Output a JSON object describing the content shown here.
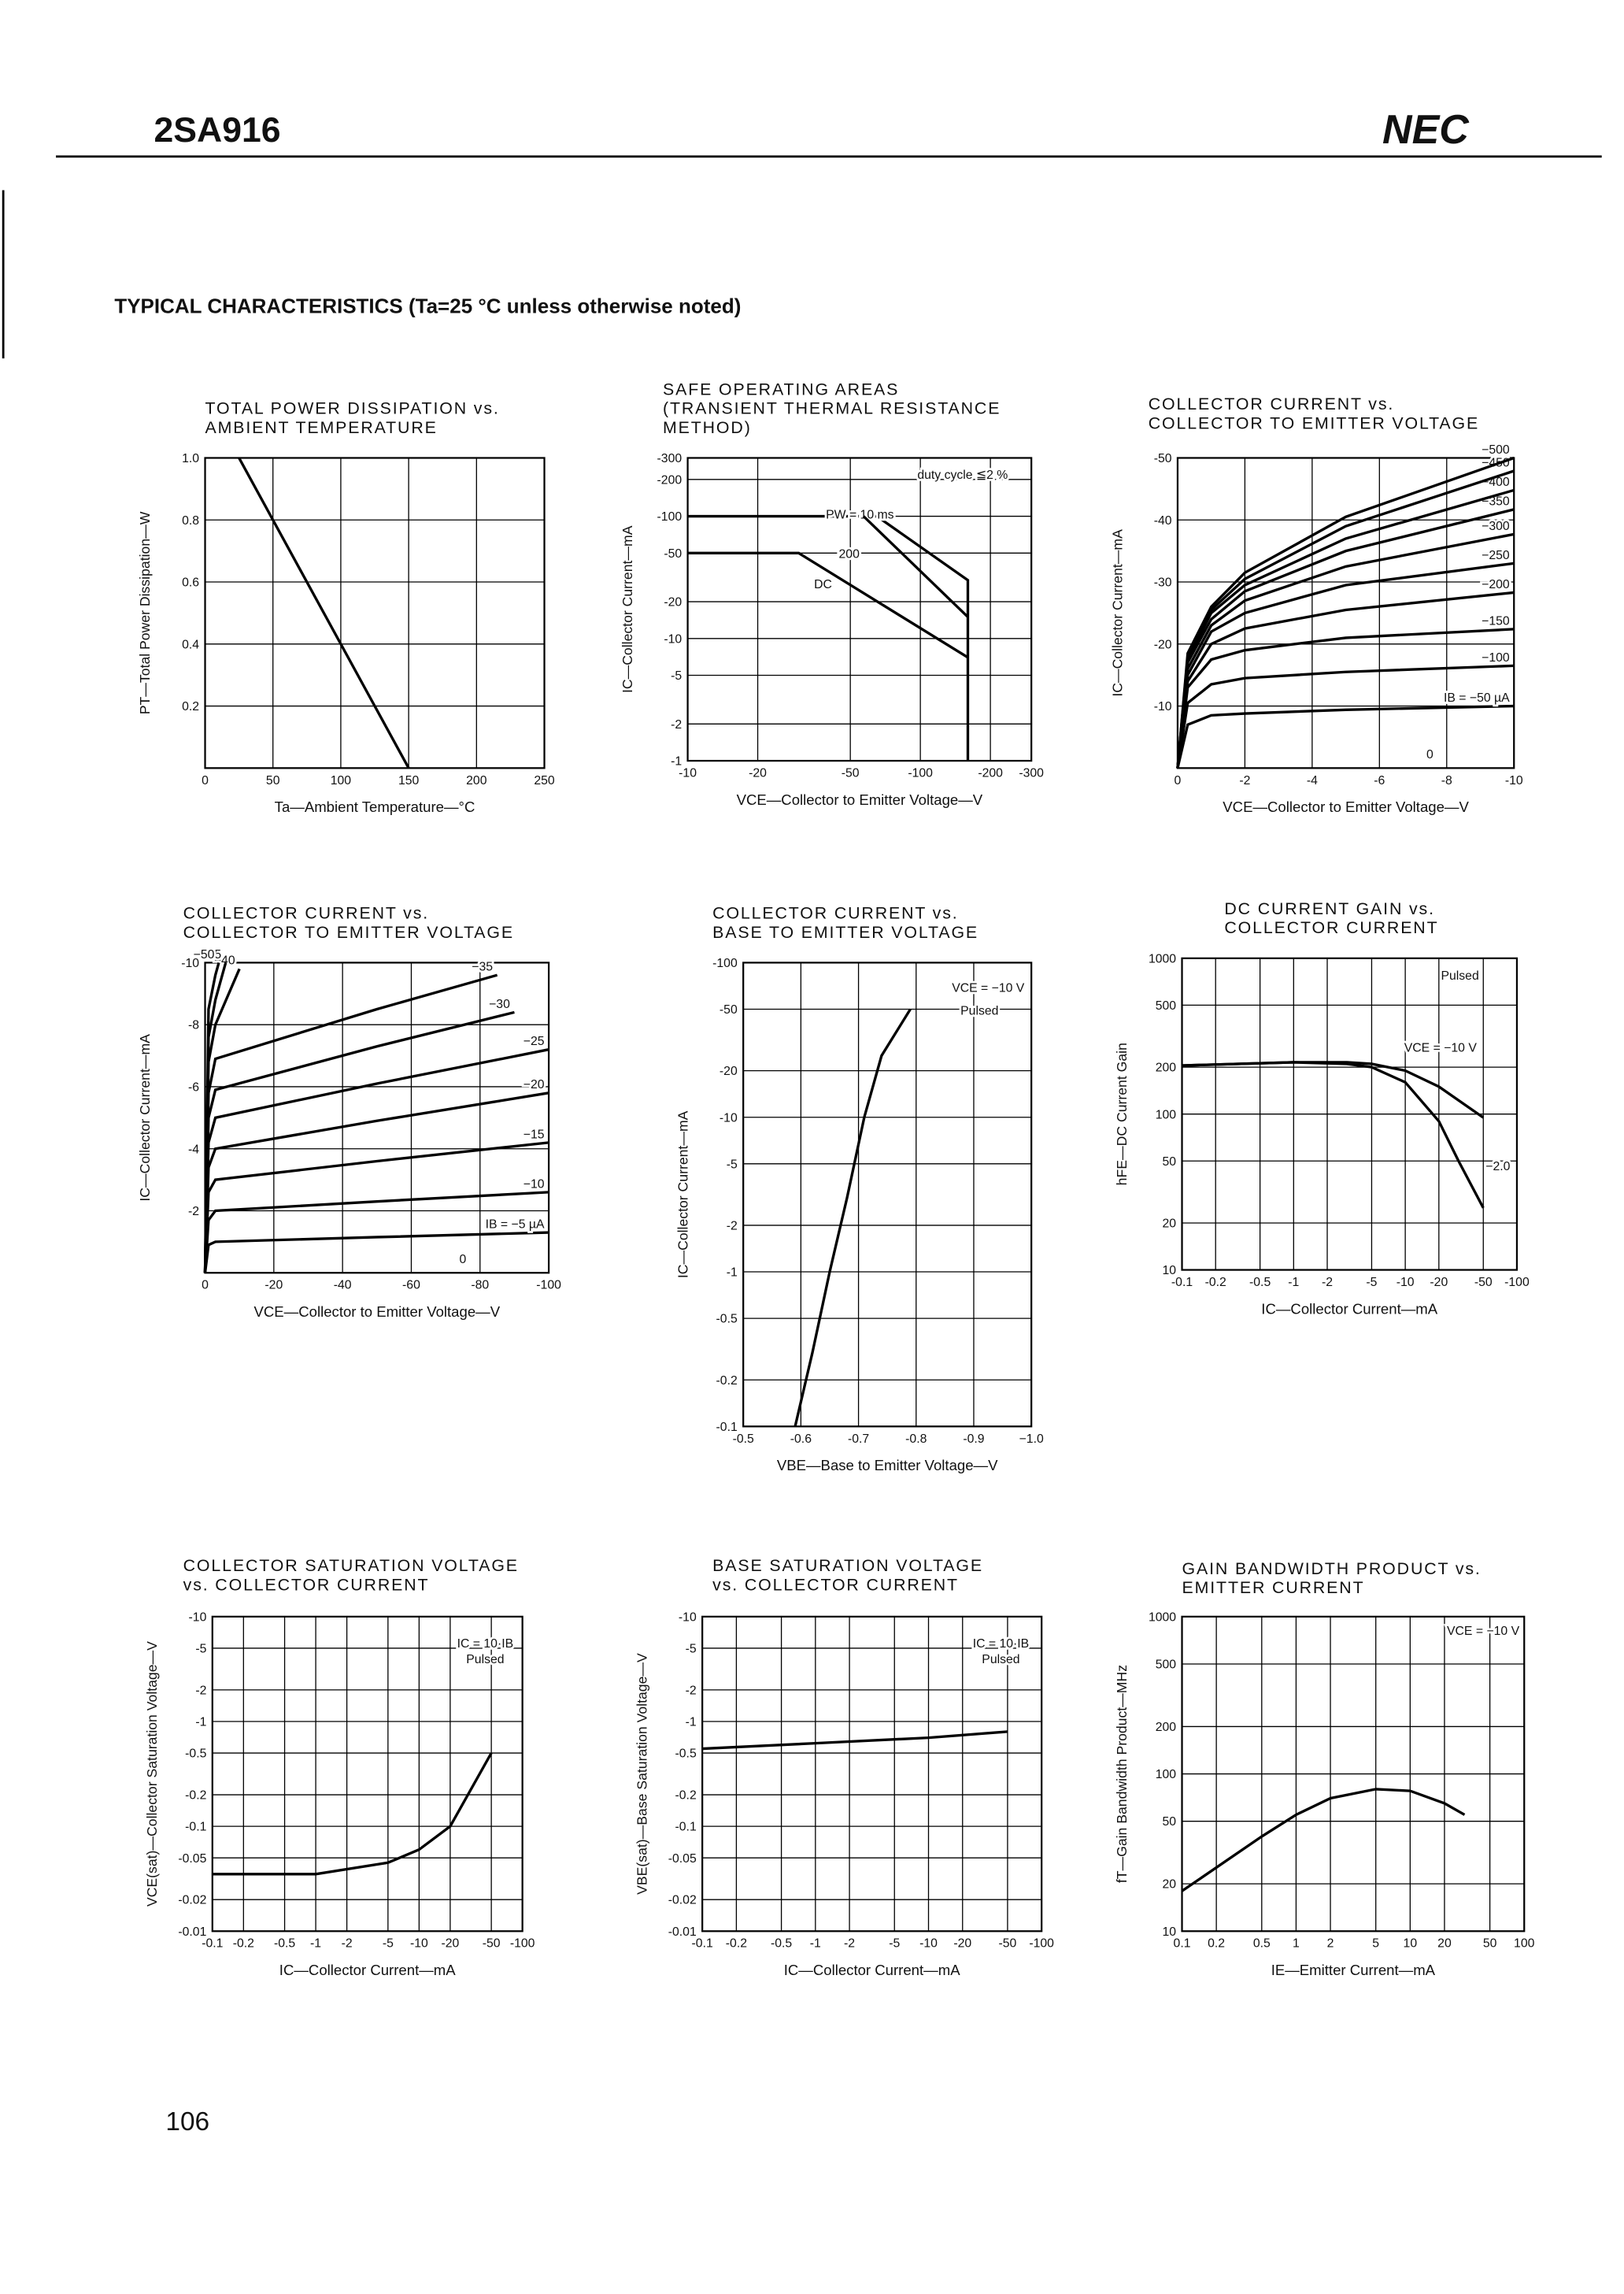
{
  "header": {
    "part": "2SA916",
    "brand": "NEC"
  },
  "section_title": "TYPICAL CHARACTERISTICS (Ta=25 °C unless otherwise noted)",
  "page_number": "106",
  "chart_data": [
    {
      "type": "line",
      "title": [
        "TOTAL POWER DISSIPATION vs.",
        "AMBIENT TEMPERATURE"
      ],
      "x_label": "Ta—Ambient Temperature—°C",
      "y_label": "PT—Total Power Dissipation—W",
      "xlim": [
        0,
        250
      ],
      "ylim": [
        0,
        1
      ],
      "xticks": [
        0,
        50,
        100,
        150,
        200,
        250
      ],
      "yticks": [
        0.2,
        0.4,
        0.6,
        0.8,
        {
          "value": 1,
          "label": "1.0"
        }
      ],
      "xlog": false,
      "ylog": false,
      "grid": true,
      "series": [
        {
          "color": "#000000",
          "x": [
            25,
            150
          ],
          "values": [
            1,
            0
          ]
        }
      ],
      "annotations": []
    },
    {
      "type": "line",
      "title": [
        "SAFE OPERATING AREAS",
        "(TRANSIENT THERMAL RESISTANCE",
        "METHOD)"
      ],
      "x_label": "VCE—Collector to Emitter Voltage—V",
      "y_label": "IC—Collector Current—mA",
      "xlim": [
        -10,
        -300
      ],
      "ylim": [
        -1,
        -300
      ],
      "xticks": [
        -10,
        -20,
        -50,
        -100,
        -200,
        -300
      ],
      "yticks": [
        -1,
        -2,
        -5,
        -10,
        -20,
        -50,
        -100,
        -200,
        -300
      ],
      "xlog": true,
      "ylog": true,
      "grid": true,
      "series": [
        {
          "name": "PW = 10 ms",
          "color": "#000000",
          "x": [
            -10,
            -65,
            -160,
            -160
          ],
          "values": [
            -100,
            -100,
            -30,
            -1
          ]
        },
        {
          "name": "200",
          "color": "#000000",
          "x": [
            -57,
            -160
          ],
          "values": [
            -100,
            -15
          ]
        },
        {
          "name": "DC",
          "color": "#000000",
          "x": [
            -10,
            -30,
            -160
          ],
          "values": [
            -50,
            -50,
            -7
          ]
        }
      ],
      "annotations": [
        "duty cycle ≦2 %"
      ]
    },
    {
      "type": "line",
      "title": [
        "COLLECTOR CURRENT vs.",
        "COLLECTOR TO EMITTER VOLTAGE"
      ],
      "x_label": "VCE—Collector to Emitter Voltage—V",
      "y_label": "IC—Collector Current—mA",
      "xlim": [
        0,
        -10
      ],
      "ylim": [
        0,
        -50
      ],
      "xticks": [
        0,
        -2,
        -4,
        -6,
        -8,
        -10
      ],
      "yticks": [
        -10,
        -20,
        -30,
        -40,
        -50
      ],
      "xlog": false,
      "ylog": false,
      "grid": true,
      "series": [
        {
          "name": "IB = −50 µA",
          "color": "#000000",
          "x": [
            0,
            -0.3,
            -1,
            -2,
            -5,
            -10
          ],
          "values": [
            0,
            -7,
            -8.5,
            -8.8,
            -9.4,
            -10
          ]
        },
        {
          "name": "−100",
          "color": "#000000",
          "x": [
            0,
            -0.3,
            -1,
            -2,
            -5,
            -10
          ],
          "values": [
            0,
            -10.5,
            -13.5,
            -14.5,
            -15.5,
            -16.5
          ]
        },
        {
          "name": "−150",
          "color": "#000000",
          "x": [
            0,
            -0.3,
            -1,
            -2,
            -5,
            -10
          ],
          "values": [
            0,
            -13,
            -17.5,
            -19,
            -21,
            -22.4
          ]
        },
        {
          "name": "−200",
          "color": "#000000",
          "x": [
            0,
            -0.3,
            -1,
            -2,
            -5,
            -10
          ],
          "values": [
            0,
            -14,
            -20,
            -22.5,
            -25.5,
            -28.3
          ]
        },
        {
          "name": "−250",
          "color": "#000000",
          "x": [
            0,
            -0.3,
            -1,
            -2,
            -5,
            -10
          ],
          "values": [
            0,
            -15,
            -22,
            -25,
            -29.5,
            -33
          ]
        },
        {
          "name": "−300",
          "color": "#000000",
          "x": [
            0,
            -0.3,
            -1,
            -2,
            -5,
            -10
          ],
          "values": [
            0,
            -16,
            -23,
            -27,
            -32.5,
            -37.7
          ]
        },
        {
          "name": "−350",
          "color": "#000000",
          "x": [
            0,
            -0.3,
            -1,
            -2,
            -5,
            -10
          ],
          "values": [
            0,
            -17,
            -24,
            -28.5,
            -35,
            -41.7
          ]
        },
        {
          "name": "−400",
          "color": "#000000",
          "x": [
            0,
            -0.3,
            -1,
            -2,
            -5,
            -10
          ],
          "values": [
            0,
            -17.5,
            -25,
            -29.5,
            -37,
            -44.8
          ]
        },
        {
          "name": "−450",
          "color": "#000000",
          "x": [
            0,
            -0.3,
            -1,
            -2,
            -5,
            -10
          ],
          "values": [
            0,
            -18,
            -25.5,
            -30.5,
            -39,
            -47.9
          ]
        },
        {
          "name": "−500",
          "color": "#000000",
          "x": [
            0,
            -0.3,
            -1,
            -2,
            -5,
            -10
          ],
          "values": [
            0,
            -18.5,
            -26,
            -31.5,
            -40.5,
            -50
          ]
        }
      ],
      "annotations": [
        "0"
      ]
    },
    {
      "type": "line",
      "title": [
        "COLLECTOR CURRENT vs.",
        "COLLECTOR TO EMITTER VOLTAGE"
      ],
      "x_label": "VCE—Collector to Emitter Voltage—V",
      "y_label": "IC—Collector Current—mA",
      "xlim": [
        0,
        -100
      ],
      "ylim": [
        0,
        -10
      ],
      "xticks": [
        0,
        -20,
        -40,
        -60,
        -80,
        -100
      ],
      "yticks": [
        -2,
        -4,
        -6,
        -8,
        -10
      ],
      "xlog": false,
      "ylog": false,
      "grid": true,
      "series": [
        {
          "name": "IB = −5 µA",
          "color": "#000000",
          "x": [
            0,
            -1,
            -3,
            -50,
            -100
          ],
          "values": [
            0,
            -0.9,
            -1,
            -1.15,
            -1.3
          ]
        },
        {
          "name": "−10",
          "color": "#000000",
          "x": [
            0,
            -1,
            -3,
            -50,
            -100
          ],
          "values": [
            0,
            -1.7,
            -2,
            -2.3,
            -2.6
          ]
        },
        {
          "name": "−15",
          "color": "#000000",
          "x": [
            0,
            -1,
            -3,
            -50,
            -100
          ],
          "values": [
            0,
            -2.6,
            -3,
            -3.6,
            -4.2
          ]
        },
        {
          "name": "−20",
          "color": "#000000",
          "x": [
            0,
            -1,
            -3,
            -50,
            -100
          ],
          "values": [
            0,
            -3.4,
            -4,
            -4.9,
            -5.8
          ]
        },
        {
          "name": "−25",
          "color": "#000000",
          "x": [
            0,
            -1,
            -3,
            -50,
            -100
          ],
          "values": [
            0,
            -4.2,
            -5,
            -6.1,
            -7.2
          ]
        },
        {
          "name": "−30",
          "color": "#000000",
          "x": [
            0,
            -1,
            -3,
            -50,
            -90
          ],
          "values": [
            0,
            -5,
            -5.9,
            -7.3,
            -8.4
          ]
        },
        {
          "name": "−35",
          "color": "#000000",
          "x": [
            0,
            -1,
            -3,
            -50,
            -85
          ],
          "values": [
            0,
            -5.8,
            -6.9,
            -8.5,
            -9.6
          ]
        },
        {
          "name": "−40",
          "color": "#000000",
          "x": [
            0,
            -1,
            -3,
            -10
          ],
          "values": [
            0,
            -6.8,
            -8,
            -9.8
          ]
        },
        {
          "name": "−45",
          "color": "#000000",
          "x": [
            0,
            -1,
            -3,
            -6
          ],
          "values": [
            0,
            -7.6,
            -8.8,
            -10
          ]
        },
        {
          "name": "−50",
          "color": "#000000",
          "x": [
            0,
            -1,
            -3,
            -4
          ],
          "values": [
            0,
            -8.5,
            -9.6,
            -10
          ]
        }
      ],
      "annotations": [
        "0"
      ]
    },
    {
      "type": "line",
      "title": [
        "COLLECTOR CURRENT vs.",
        "BASE TO EMITTER VOLTAGE"
      ],
      "x_label": "VBE—Base to Emitter Voltage—V",
      "y_label": "IC—Collector Current—mA",
      "xlim": [
        -0.5,
        -1
      ],
      "ylim": [
        -0.1,
        -100
      ],
      "xticks": [
        -0.5,
        -0.6,
        -0.7,
        -0.8,
        -0.9,
        {
          "value": -1,
          "label": "−1.0"
        }
      ],
      "yticks": [
        -0.1,
        -0.2,
        -0.5,
        -1,
        -2,
        -5,
        -10,
        -20,
        -50,
        -100
      ],
      "xlog": false,
      "ylog": true,
      "grid": true,
      "series": [
        {
          "color": "#000000",
          "x": [
            -0.59,
            -0.62,
            -0.65,
            -0.68,
            -0.71,
            -0.74,
            -0.79
          ],
          "values": [
            -0.1,
            -0.3,
            -1,
            -3,
            -10,
            -25,
            -50
          ]
        }
      ],
      "annotations": [
        "VCE = −10 V",
        "Pulsed"
      ]
    },
    {
      "type": "line",
      "title": [
        "DC CURRENT GAIN vs.",
        "COLLECTOR CURRENT"
      ],
      "x_label": "IC—Collector Current—mA",
      "y_label": "hFE—DC Current Gain",
      "xlim": [
        -0.1,
        -100
      ],
      "ylim": [
        10,
        1000
      ],
      "xticks": [
        -0.1,
        -0.2,
        -0.5,
        -1,
        -2,
        -5,
        -10,
        -20,
        -50,
        -100
      ],
      "yticks": [
        10,
        20,
        50,
        100,
        200,
        500,
        1000
      ],
      "xlog": true,
      "ylog": true,
      "grid": true,
      "series": [
        {
          "name": "VCE = −10 V",
          "color": "#000000",
          "x": [
            -0.1,
            -1,
            -3,
            -5,
            -10,
            -20,
            -50
          ],
          "values": [
            205,
            215,
            215,
            210,
            190,
            150,
            95
          ]
        },
        {
          "name": "−2.0",
          "color": "#000000",
          "x": [
            -0.1,
            -1,
            -3,
            -5,
            -10,
            -20,
            -30,
            -50
          ],
          "values": [
            205,
            215,
            210,
            200,
            160,
            90,
            50,
            25
          ]
        }
      ],
      "annotations": [
        "Pulsed"
      ]
    },
    {
      "type": "line",
      "title": [
        "COLLECTOR SATURATION VOLTAGE",
        "vs. COLLECTOR CURRENT"
      ],
      "x_label": "IC—Collector Current—mA",
      "y_label": "VCE(sat)—Collector Saturation Voltage—V",
      "xlim": [
        -0.1,
        -100
      ],
      "ylim": [
        -0.01,
        -10
      ],
      "xticks": [
        -0.1,
        -0.2,
        -0.5,
        -1,
        -2,
        -5,
        -10,
        -20,
        -50,
        -100
      ],
      "yticks": [
        -0.01,
        -0.02,
        -0.05,
        -0.1,
        -0.2,
        -0.5,
        -1,
        -2,
        -5,
        -10
      ],
      "xlog": true,
      "ylog": true,
      "grid": true,
      "series": [
        {
          "color": "#000000",
          "x": [
            -0.1,
            -1,
            -5,
            -10,
            -20,
            -50
          ],
          "values": [
            -0.035,
            -0.035,
            -0.045,
            -0.06,
            -0.1,
            -0.5
          ]
        }
      ],
      "annotations": [
        "IC = 10·IB",
        "Pulsed"
      ]
    },
    {
      "type": "line",
      "title": [
        "BASE SATURATION VOLTAGE",
        "vs. COLLECTOR CURRENT"
      ],
      "x_label": "IC—Collector Current—mA",
      "y_label": "VBE(sat)—Base Saturation Voltage—V",
      "xlim": [
        -0.1,
        -100
      ],
      "ylim": [
        -0.01,
        -10
      ],
      "xticks": [
        -0.1,
        -0.2,
        -0.5,
        -1,
        -2,
        -5,
        -10,
        -20,
        -50,
        -100
      ],
      "yticks": [
        -0.01,
        -0.02,
        -0.05,
        -0.1,
        -0.2,
        -0.5,
        -1,
        -2,
        -5,
        -10
      ],
      "xlog": true,
      "ylog": true,
      "grid": true,
      "series": [
        {
          "color": "#000000",
          "x": [
            -0.1,
            -1,
            -10,
            -50
          ],
          "values": [
            -0.55,
            -0.62,
            -0.7,
            -0.8
          ]
        }
      ],
      "annotations": [
        "IC = 10·IB",
        "Pulsed"
      ]
    },
    {
      "type": "line",
      "title": [
        "GAIN BANDWIDTH PRODUCT vs.",
        "EMITTER CURRENT"
      ],
      "x_label": "IE—Emitter Current—mA",
      "y_label": "fT—Gain Bandwidth Product—MHz",
      "xlim": [
        0.1,
        100
      ],
      "ylim": [
        10,
        1000
      ],
      "xticks": [
        0.1,
        0.2,
        0.5,
        1,
        2,
        5,
        10,
        20,
        50,
        100
      ],
      "yticks": [
        10,
        20,
        50,
        100,
        200,
        500,
        1000
      ],
      "xlog": true,
      "ylog": true,
      "grid": true,
      "series": [
        {
          "color": "#000000",
          "x": [
            0.1,
            0.5,
            1,
            2,
            5,
            10,
            20,
            30
          ],
          "values": [
            18,
            40,
            55,
            70,
            80,
            78,
            65,
            55
          ]
        }
      ],
      "annotations": [
        "VCE = −10 V"
      ]
    }
  ]
}
